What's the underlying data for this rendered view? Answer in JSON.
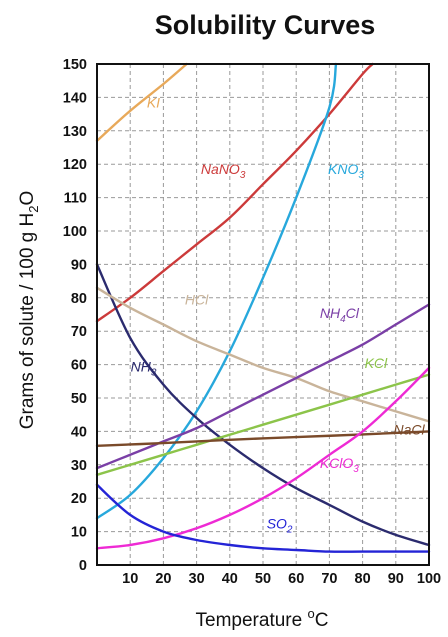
{
  "chart_data": {
    "type": "line",
    "title": "Solubility Curves",
    "xlabel": {
      "main": "Temperature ",
      "sup": "o",
      "rest": "C"
    },
    "ylabel": {
      "main": "Grams of solute / 100 g H",
      "sub": "2",
      "rest": "O"
    },
    "xlim": [
      0,
      100
    ],
    "ylim": [
      0,
      150
    ],
    "x_ticks": [
      "10",
      "20",
      "30",
      "40",
      "50",
      "60",
      "70",
      "80",
      "90",
      "100"
    ],
    "x_tick_values": [
      10,
      20,
      30,
      40,
      50,
      60,
      70,
      80,
      90,
      100
    ],
    "y_ticks": [
      "0",
      "10",
      "20",
      "30",
      "40",
      "50",
      "60",
      "70",
      "80",
      "90",
      "100",
      "110",
      "120",
      "130",
      "140",
      "150"
    ],
    "y_tick_values": [
      0,
      10,
      20,
      30,
      40,
      50,
      60,
      70,
      80,
      90,
      100,
      110,
      120,
      130,
      140,
      150
    ],
    "grid": true,
    "series": [
      {
        "name": "KI",
        "label": {
          "main": "KI",
          "sub": ""
        },
        "color": "#e8a95a",
        "x": [
          0,
          10,
          20,
          27
        ],
        "y": [
          127,
          136,
          144,
          150
        ],
        "label_at": [
          17,
          137
        ]
      },
      {
        "name": "NaNO3",
        "label": {
          "main": "NaNO",
          "sub": "3"
        },
        "color": "#cc3a3a",
        "x": [
          0,
          10,
          20,
          30,
          40,
          50,
          60,
          70,
          80,
          83
        ],
        "y": [
          73,
          80,
          88,
          96,
          104,
          114,
          124,
          135,
          147,
          150
        ],
        "label_at": [
          38,
          117
        ]
      },
      {
        "name": "KNO3",
        "label": {
          "main": "KNO",
          "sub": "3"
        },
        "color": "#27a8dc",
        "x": [
          0,
          10,
          20,
          30,
          40,
          50,
          60,
          70,
          72
        ],
        "y": [
          14,
          21,
          32,
          46,
          64,
          86,
          110,
          137,
          150
        ],
        "label_at": [
          75,
          117
        ]
      },
      {
        "name": "NH3",
        "label": {
          "main": "NH",
          "sub": "3"
        },
        "color": "#2b2b6e",
        "x": [
          0,
          10,
          20,
          30,
          40,
          50,
          60,
          70,
          80,
          90,
          100
        ],
        "y": [
          90,
          68,
          54,
          44,
          36,
          29,
          23,
          18,
          13,
          9,
          6
        ],
        "label_at": [
          14,
          58
        ]
      },
      {
        "name": "HCl",
        "label": {
          "main": "HCl",
          "sub": ""
        },
        "color": "#c9b49a",
        "x": [
          0,
          10,
          20,
          30,
          40,
          50,
          60,
          70,
          80,
          90,
          100
        ],
        "y": [
          83,
          77,
          72,
          67,
          63,
          59,
          56,
          52,
          49,
          46,
          43
        ],
        "label_at": [
          30,
          78
        ]
      },
      {
        "name": "NH4Cl",
        "label": {
          "main": "NH",
          "sub": "4",
          "rest": "Cl"
        },
        "color": "#7a3fa6",
        "x": [
          0,
          10,
          20,
          30,
          40,
          50,
          60,
          70,
          80,
          90,
          100
        ],
        "y": [
          29,
          33,
          37,
          41,
          46,
          51,
          56,
          61,
          66,
          72,
          78
        ],
        "label_at": [
          73,
          74
        ]
      },
      {
        "name": "KCl",
        "label": {
          "main": "KCl",
          "sub": ""
        },
        "color": "#8cc44a",
        "x": [
          0,
          10,
          20,
          30,
          40,
          50,
          60,
          70,
          80,
          90,
          100
        ],
        "y": [
          27,
          30,
          33,
          36,
          39,
          42,
          45,
          48,
          51,
          54,
          57
        ],
        "label_at": [
          84,
          59
        ]
      },
      {
        "name": "NaCl",
        "label": {
          "main": "NaCl",
          "sub": ""
        },
        "color": "#7a4a2a",
        "x": [
          0,
          20,
          40,
          60,
          80,
          100
        ],
        "y": [
          35.7,
          36.5,
          37.5,
          38.3,
          39.1,
          40
        ],
        "label_at": [
          94,
          39
        ]
      },
      {
        "name": "KClO3",
        "label": {
          "main": "KClO",
          "sub": "3"
        },
        "color": "#ee2ad4",
        "x": [
          0,
          10,
          20,
          30,
          40,
          50,
          60,
          70,
          80,
          90,
          100
        ],
        "y": [
          5,
          6,
          8,
          11,
          15,
          20,
          26,
          33,
          40,
          49,
          59
        ],
        "label_at": [
          73,
          29
        ]
      },
      {
        "name": "SO2",
        "label": {
          "main": "SO",
          "sub": "2"
        },
        "color": "#2424d6",
        "x": [
          0,
          10,
          20,
          30,
          40,
          50,
          60,
          70,
          80,
          90,
          100
        ],
        "y": [
          24,
          15,
          10,
          7.5,
          6,
          5,
          4.5,
          4,
          4,
          4,
          4
        ],
        "label_at": [
          55,
          11
        ]
      }
    ]
  }
}
